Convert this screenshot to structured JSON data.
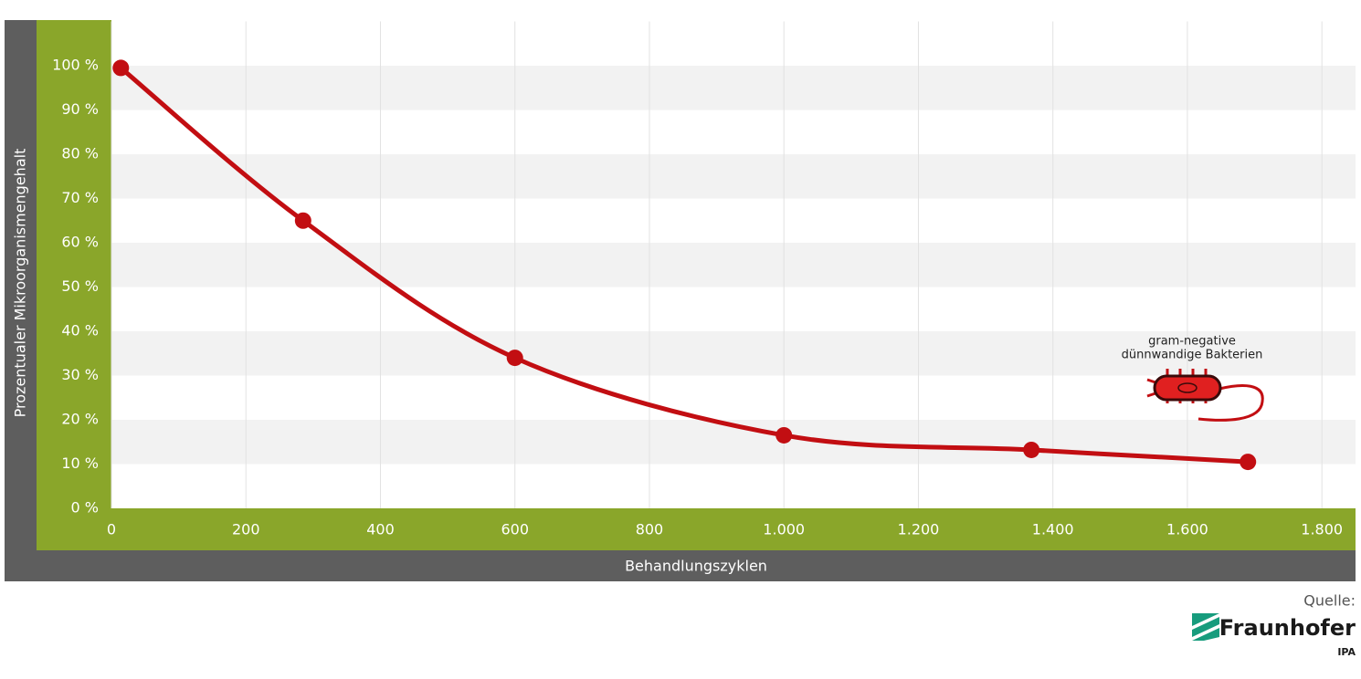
{
  "chart_data": {
    "type": "line",
    "x_label": "Behandlungszyklen",
    "y_label": "Prozentualer Mikroorganismengehalt",
    "x": [
      14,
      285,
      600,
      1000,
      1368,
      1690
    ],
    "series": [
      {
        "name": "Mikroorganismengehalt",
        "color": "#c20e12",
        "values": [
          99.5,
          65,
          34,
          16.5,
          13.2,
          10.5
        ]
      }
    ],
    "xlim": [
      0,
      1850
    ],
    "ylim": [
      0,
      110
    ],
    "xticks": [
      0,
      200,
      400,
      600,
      800,
      {
        "value": 1000,
        "label": "1.000"
      },
      {
        "value": 1200,
        "label": "1.200"
      },
      {
        "value": 1400,
        "label": "1.400"
      },
      {
        "value": 1600,
        "label": "1.600"
      },
      {
        "value": 1800,
        "label": "1.800"
      }
    ],
    "yticks": [
      {
        "value": 0,
        "label": "0 %"
      },
      {
        "value": 10,
        "label": "10 %"
      },
      {
        "value": 20,
        "label": "20 %"
      },
      {
        "value": 30,
        "label": "30 %"
      },
      {
        "value": 40,
        "label": "40 %"
      },
      {
        "value": 50,
        "label": "50 %"
      },
      {
        "value": 60,
        "label": "60 %"
      },
      {
        "value": 70,
        "label": "70 %"
      },
      {
        "value": 80,
        "label": "80 %"
      },
      {
        "value": 90,
        "label": "90 %"
      },
      {
        "value": 100,
        "label": "100 %"
      }
    ],
    "grid": true,
    "annotation": [
      "gram-negative",
      "dünnwandige Bakterien"
    ],
    "source": {
      "label": "Quelle:",
      "name": "Fraunhofer",
      "unit": "IPA"
    }
  }
}
